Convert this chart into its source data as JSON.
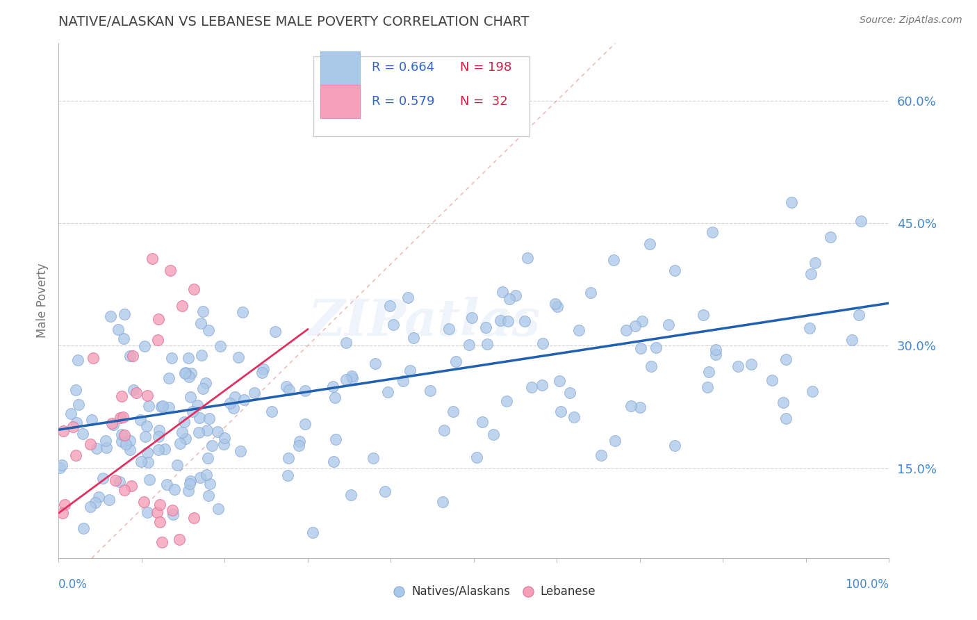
{
  "title": "NATIVE/ALASKAN VS LEBANESE MALE POVERTY CORRELATION CHART",
  "source": "Source: ZipAtlas.com",
  "ylabel": "Male Poverty",
  "xlim": [
    0.0,
    1.0
  ],
  "ylim": [
    0.04,
    0.67
  ],
  "r_native": 0.664,
  "n_native": 198,
  "r_lebanese": 0.579,
  "n_lebanese": 32,
  "color_native": "#aac8e8",
  "color_lebanese": "#f5a0b8",
  "color_trendline_native": "#2060b0",
  "color_trendline_lebanese": "#e03060",
  "color_diagonal": "#e08888",
  "color_ytick": "#4488cc",
  "color_title": "#444444",
  "color_source": "#777777",
  "color_legend_r": "#3366cc",
  "color_legend_n": "#cc2244",
  "background_color": "#ffffff",
  "watermark_text": "ZIPatlas",
  "ytick_positions": [
    0.15,
    0.3,
    0.45,
    0.6
  ],
  "ytick_labels": [
    "15.0%",
    "30.0%",
    "45.0%",
    "60.0%"
  ]
}
